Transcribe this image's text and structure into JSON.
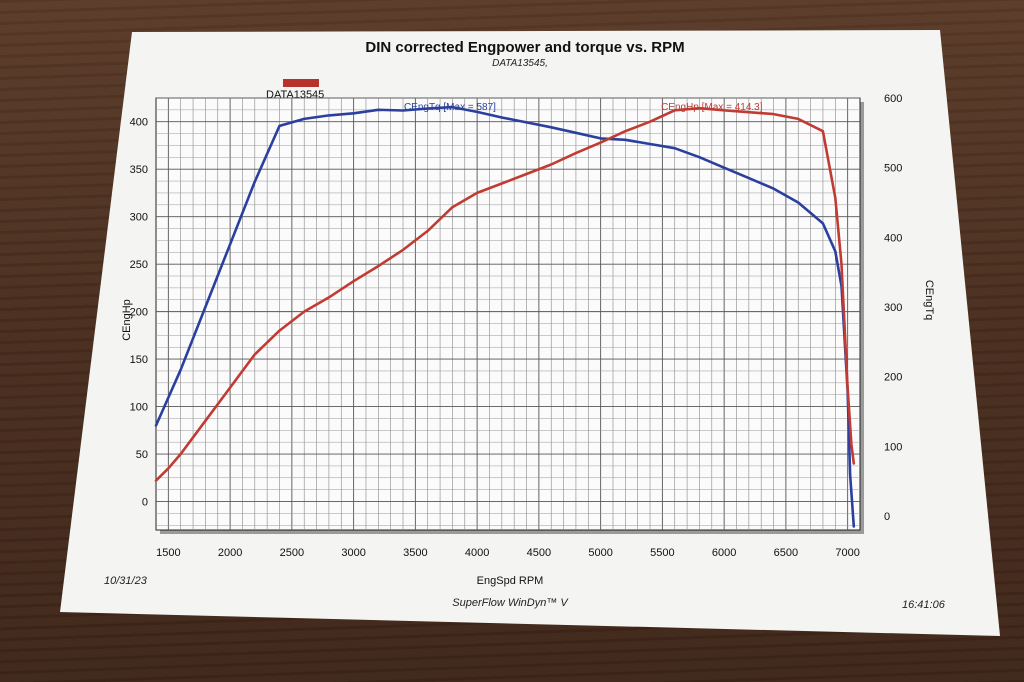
{
  "chart_data": {
    "type": "line",
    "title": "DIN corrected Engpower and torque vs. RPM",
    "subtitle": "DATA13545,",
    "legend": {
      "entries": [
        "DATA13545"
      ],
      "color": "#b8322c",
      "placement": "top-left"
    },
    "xlabel": "EngSpd  RPM",
    "ylabel_left": "CEngHp",
    "ylabel_right": "CEngTq",
    "xlim": [
      1400,
      7100
    ],
    "ylim_left": [
      -30,
      425
    ],
    "ylim_right": [
      -20,
      600
    ],
    "x_ticks": [
      1500,
      2000,
      2500,
      3000,
      3500,
      4000,
      4500,
      5000,
      5500,
      6000,
      6500,
      7000
    ],
    "y_left_ticks": [
      0,
      50,
      100,
      150,
      200,
      250,
      300,
      350,
      400
    ],
    "y_right_ticks": [
      0,
      100,
      200,
      300,
      400,
      500,
      600
    ],
    "grid": true,
    "series": [
      {
        "name": "CEngTq [Max = 587]",
        "axis": "right",
        "color": "#2a3f9e",
        "x": [
          1400,
          1450,
          1600,
          1800,
          2000,
          2200,
          2400,
          2600,
          2800,
          3000,
          3200,
          3400,
          3600,
          3800,
          4000,
          4200,
          4400,
          4600,
          4800,
          5000,
          5200,
          5400,
          5600,
          5800,
          6000,
          6200,
          6400,
          6600,
          6800,
          6900,
          6950,
          7000,
          7020,
          7050
        ],
        "y": [
          130,
          150,
          210,
          300,
          390,
          480,
          560,
          570,
          575,
          578,
          583,
          582,
          585,
          587,
          580,
          572,
          565,
          558,
          550,
          542,
          540,
          534,
          528,
          515,
          500,
          485,
          470,
          450,
          420,
          380,
          330,
          180,
          60,
          -15
        ]
      },
      {
        "name": "CEngHp [Max = 414.3]",
        "axis": "left",
        "color": "#c13b33",
        "x": [
          1400,
          1500,
          1600,
          1800,
          2000,
          2200,
          2400,
          2600,
          2800,
          3000,
          3200,
          3400,
          3600,
          3800,
          4000,
          4200,
          4400,
          4600,
          4800,
          5000,
          5200,
          5400,
          5600,
          5800,
          6000,
          6200,
          6400,
          6600,
          6800,
          6900,
          6950,
          7000,
          7030,
          7050
        ],
        "y": [
          22,
          35,
          50,
          85,
          120,
          155,
          180,
          200,
          215,
          232,
          248,
          265,
          285,
          310,
          325,
          335,
          345,
          355,
          367,
          378,
          390,
          400,
          412,
          414.3,
          412,
          410,
          408,
          403,
          390,
          320,
          250,
          120,
          60,
          40
        ]
      }
    ]
  },
  "footer": {
    "date": "10/31/23",
    "software": "SuperFlow WinDyn™ V",
    "time": "16:41:06"
  }
}
